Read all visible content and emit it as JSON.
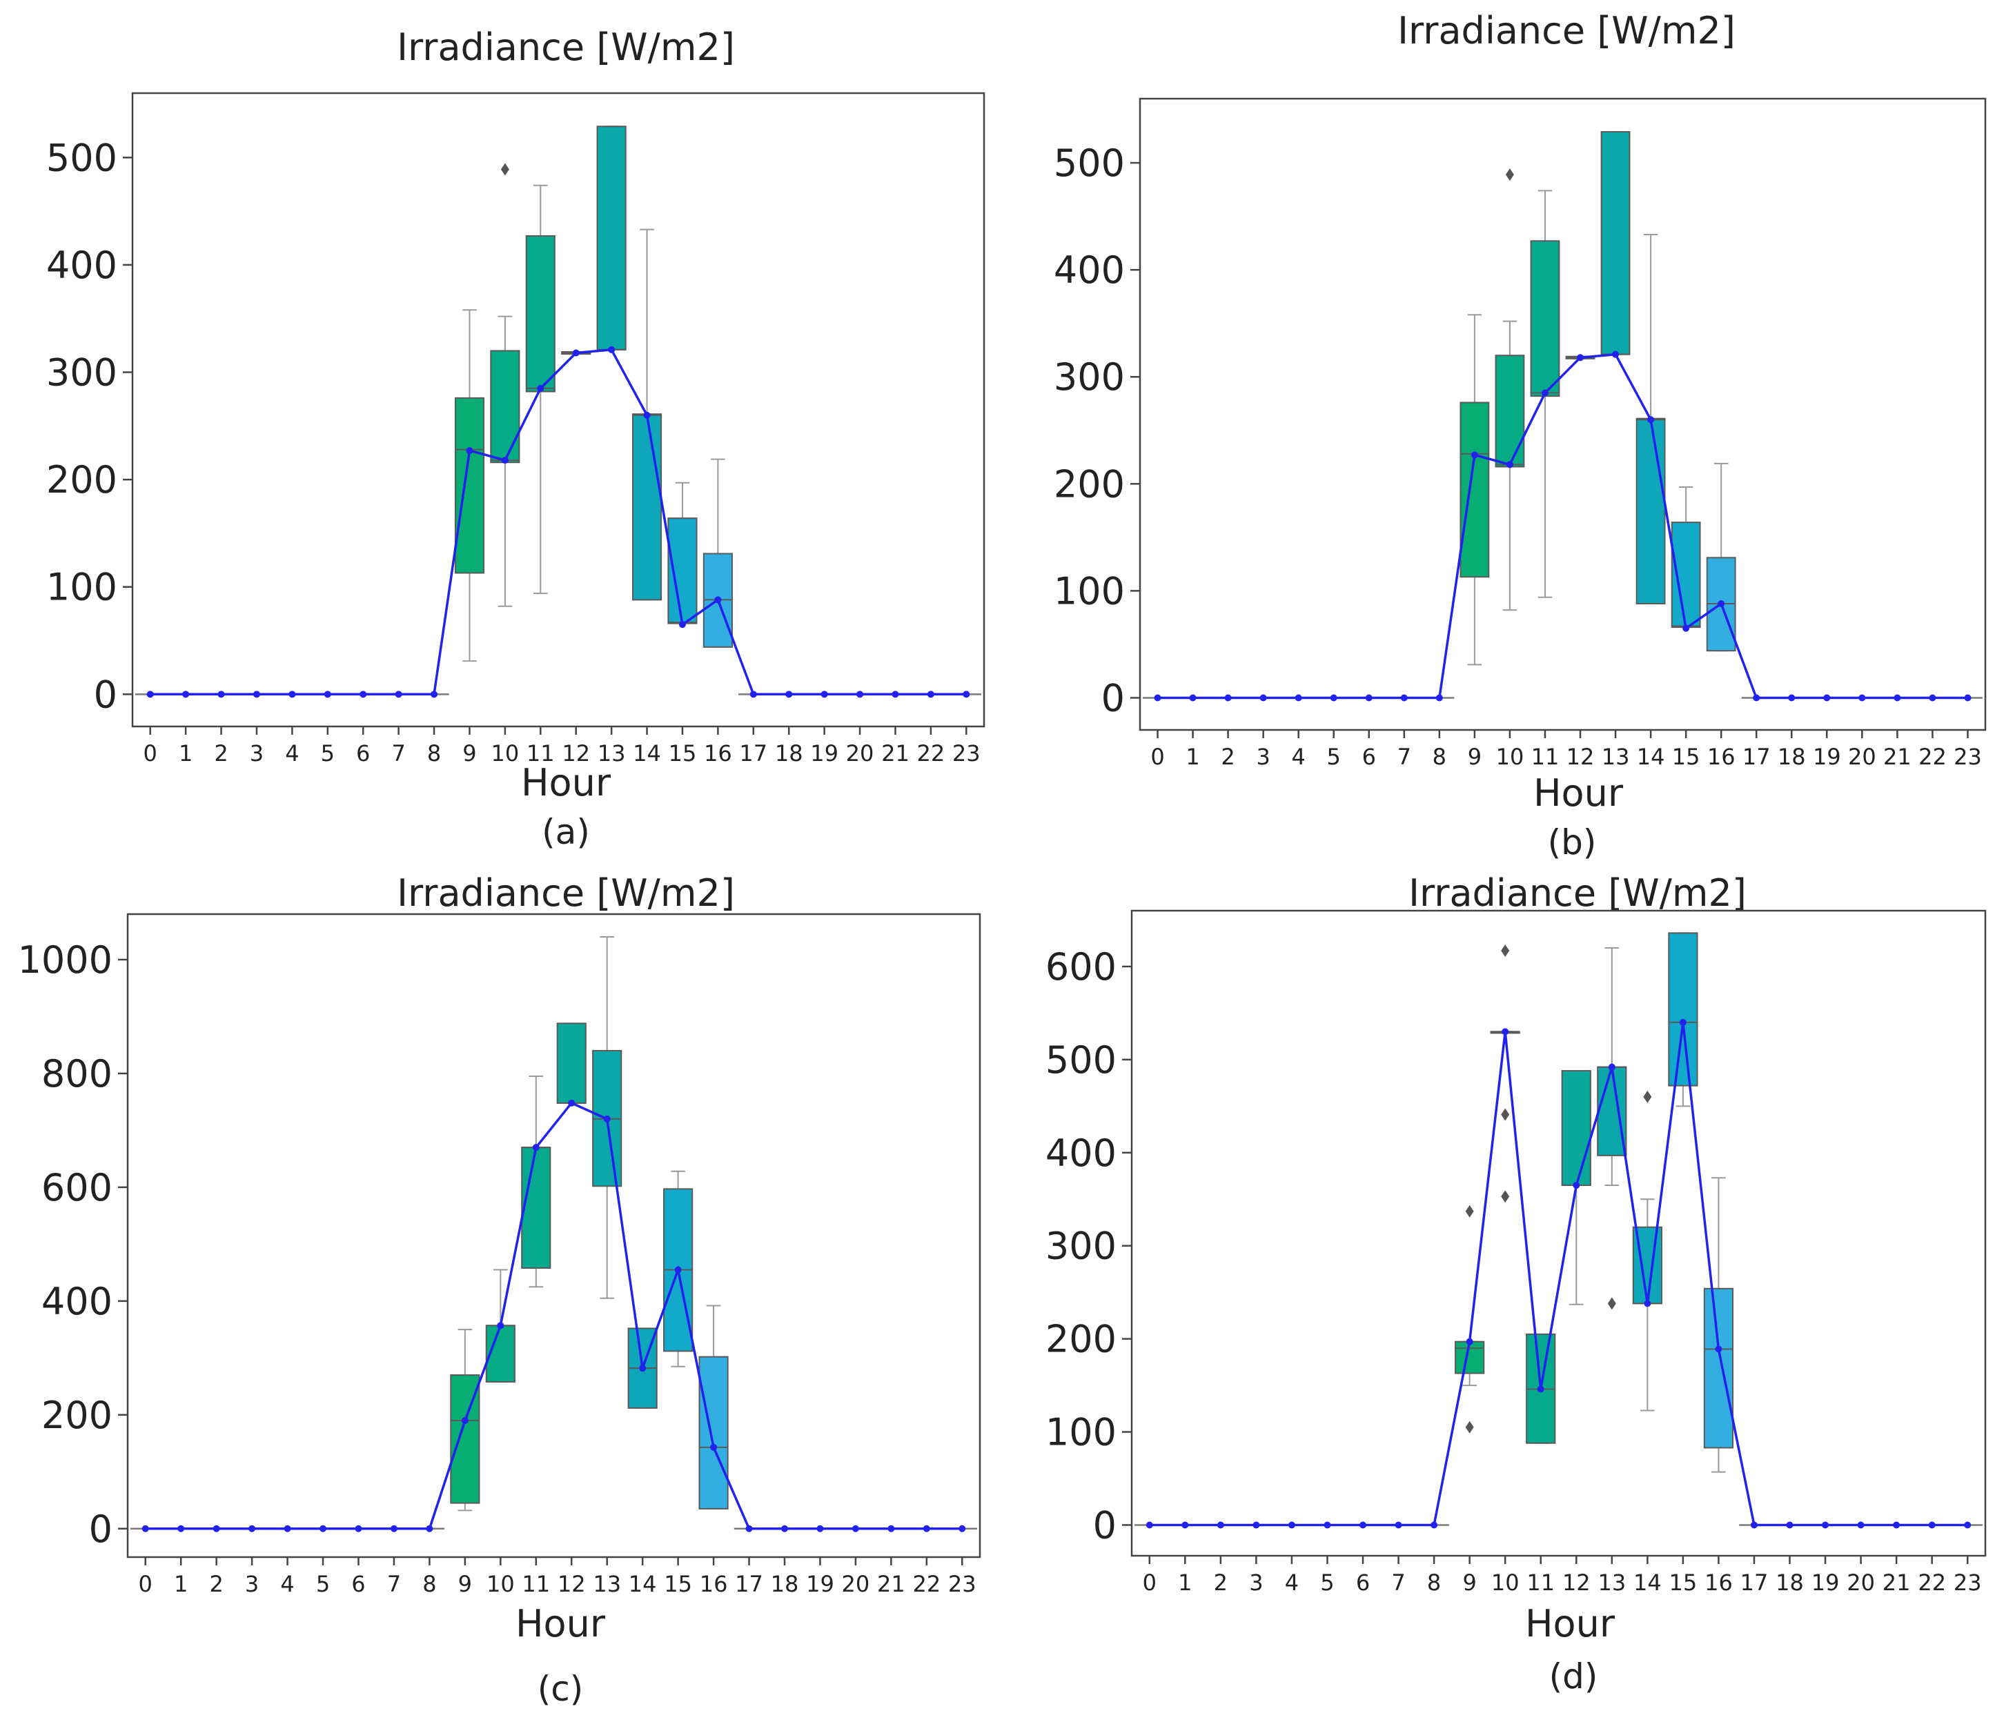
{
  "figure": {
    "mean_line_color": "#2222ee",
    "whisker_color": "#9a9a9a",
    "outlier_color": "#555555",
    "box_colors": {
      "9": "#07ad72",
      "10": "#05ab84",
      "11": "#06a98e",
      "12": "#0aa89a",
      "13": "#0ca7a8",
      "14": "#0fa6b9",
      "15": "#12a9ca",
      "16": "#33aee0"
    }
  },
  "chart_data": [
    {
      "id": "a",
      "type": "box",
      "caption": "(a)",
      "title": "Irradiance [W/m2]",
      "xlabel": "Hour",
      "ylabel": "",
      "categories": [
        "0",
        "1",
        "2",
        "3",
        "4",
        "5",
        "6",
        "7",
        "8",
        "9",
        "10",
        "11",
        "12",
        "13",
        "14",
        "15",
        "16",
        "17",
        "18",
        "19",
        "20",
        "21",
        "22",
        "23"
      ],
      "ylim": [
        -30,
        560
      ],
      "yticks": [
        0,
        100,
        200,
        300,
        400,
        500
      ],
      "ytick_labels": [
        "0",
        "100",
        "200",
        "300",
        "400",
        "500"
      ],
      "mean_line": [
        0,
        0,
        0,
        0,
        0,
        0,
        0,
        0,
        0,
        227,
        218,
        285,
        318,
        321,
        260,
        65,
        88,
        0,
        0,
        0,
        0,
        0,
        0,
        0
      ],
      "boxes": [
        {
          "hour": 9,
          "q1": 113,
          "median": 228,
          "q3": 276,
          "whislo": 31,
          "whishi": 358,
          "fliers": []
        },
        {
          "hour": 10,
          "q1": 216,
          "median": 218,
          "q3": 320,
          "whislo": 82,
          "whishi": 352,
          "fliers": [
            489
          ]
        },
        {
          "hour": 11,
          "q1": 282,
          "median": 285,
          "q3": 427,
          "whislo": 94,
          "whishi": 474,
          "fliers": []
        },
        {
          "hour": 12,
          "q1": 317,
          "median": 318,
          "q3": 319,
          "whislo": 317,
          "whishi": 319,
          "fliers": []
        },
        {
          "hour": 13,
          "q1": 321,
          "median": 321,
          "q3": 529,
          "whislo": 321,
          "whishi": 529,
          "fliers": []
        },
        {
          "hour": 14,
          "q1": 88,
          "median": 260,
          "q3": 261,
          "whislo": 88,
          "whishi": 433,
          "fliers": []
        },
        {
          "hour": 15,
          "q1": 66,
          "median": 67,
          "q3": 164,
          "whislo": 66,
          "whishi": 197,
          "fliers": []
        },
        {
          "hour": 16,
          "q1": 44,
          "median": 88,
          "q3": 131,
          "whislo": 44,
          "whishi": 219,
          "fliers": []
        }
      ]
    },
    {
      "id": "b",
      "type": "box",
      "caption": "(b)",
      "title": "Irradiance [W/m2]",
      "xlabel": "Hour",
      "ylabel": "",
      "categories": [
        "0",
        "1",
        "2",
        "3",
        "4",
        "5",
        "6",
        "7",
        "8",
        "9",
        "10",
        "11",
        "12",
        "13",
        "14",
        "15",
        "16",
        "17",
        "18",
        "19",
        "20",
        "21",
        "22",
        "23"
      ],
      "ylim": [
        -30,
        560
      ],
      "yticks": [
        0,
        100,
        200,
        300,
        400,
        500
      ],
      "ytick_labels": [
        "0",
        "100",
        "200",
        "300",
        "400",
        "500"
      ],
      "mean_line": [
        0,
        0,
        0,
        0,
        0,
        0,
        0,
        0,
        0,
        227,
        218,
        285,
        318,
        321,
        260,
        65,
        88,
        0,
        0,
        0,
        0,
        0,
        0,
        0
      ],
      "boxes": [
        {
          "hour": 9,
          "q1": 113,
          "median": 228,
          "q3": 276,
          "whislo": 31,
          "whishi": 358,
          "fliers": []
        },
        {
          "hour": 10,
          "q1": 216,
          "median": 218,
          "q3": 320,
          "whislo": 82,
          "whishi": 352,
          "fliers": [
            489
          ]
        },
        {
          "hour": 11,
          "q1": 282,
          "median": 285,
          "q3": 427,
          "whislo": 94,
          "whishi": 474,
          "fliers": []
        },
        {
          "hour": 12,
          "q1": 317,
          "median": 318,
          "q3": 319,
          "whislo": 317,
          "whishi": 319,
          "fliers": []
        },
        {
          "hour": 13,
          "q1": 321,
          "median": 321,
          "q3": 529,
          "whislo": 321,
          "whishi": 529,
          "fliers": []
        },
        {
          "hour": 14,
          "q1": 88,
          "median": 260,
          "q3": 261,
          "whislo": 88,
          "whishi": 433,
          "fliers": []
        },
        {
          "hour": 15,
          "q1": 66,
          "median": 67,
          "q3": 164,
          "whislo": 66,
          "whishi": 197,
          "fliers": []
        },
        {
          "hour": 16,
          "q1": 44,
          "median": 88,
          "q3": 131,
          "whislo": 44,
          "whishi": 219,
          "fliers": []
        }
      ]
    },
    {
      "id": "c",
      "type": "box",
      "caption": "(c)",
      "title": "Irradiance [W/m2]",
      "xlabel": "Hour",
      "ylabel": "",
      "categories": [
        "0",
        "1",
        "2",
        "3",
        "4",
        "5",
        "6",
        "7",
        "8",
        "9",
        "10",
        "11",
        "12",
        "13",
        "14",
        "15",
        "16",
        "17",
        "18",
        "19",
        "20",
        "21",
        "22",
        "23"
      ],
      "ylim": [
        -50,
        1080
      ],
      "yticks": [
        0,
        200,
        400,
        600,
        800,
        1000
      ],
      "ytick_labels": [
        "0",
        "200",
        "400",
        "600",
        "800",
        "1000"
      ],
      "mean_line": [
        0,
        0,
        0,
        0,
        0,
        0,
        0,
        0,
        0,
        190,
        357,
        670,
        748,
        720,
        282,
        455,
        143,
        0,
        0,
        0,
        0,
        0,
        0,
        0
      ],
      "boxes": [
        {
          "hour": 9,
          "q1": 45,
          "median": 190,
          "q3": 270,
          "whislo": 32,
          "whishi": 350,
          "fliers": []
        },
        {
          "hour": 10,
          "q1": 258,
          "median": 357,
          "q3": 357,
          "whislo": 258,
          "whishi": 455,
          "fliers": []
        },
        {
          "hour": 11,
          "q1": 458,
          "median": 670,
          "q3": 670,
          "whislo": 425,
          "whishi": 795,
          "fliers": []
        },
        {
          "hour": 12,
          "q1": 748,
          "median": 748,
          "q3": 888,
          "whislo": 748,
          "whishi": 888,
          "fliers": []
        },
        {
          "hour": 13,
          "q1": 602,
          "median": 720,
          "q3": 840,
          "whislo": 405,
          "whishi": 1040,
          "fliers": []
        },
        {
          "hour": 14,
          "q1": 212,
          "median": 282,
          "q3": 352,
          "whislo": 212,
          "whishi": 352,
          "fliers": []
        },
        {
          "hour": 15,
          "q1": 312,
          "median": 455,
          "q3": 597,
          "whislo": 285,
          "whishi": 628,
          "fliers": []
        },
        {
          "hour": 16,
          "q1": 35,
          "median": 143,
          "q3": 302,
          "whislo": 35,
          "whishi": 392,
          "fliers": []
        }
      ]
    },
    {
      "id": "d",
      "type": "box",
      "caption": "(d)",
      "title": "Irradiance [W/m2]",
      "xlabel": "Hour",
      "ylabel": "",
      "categories": [
        "0",
        "1",
        "2",
        "3",
        "4",
        "5",
        "6",
        "7",
        "8",
        "9",
        "10",
        "11",
        "12",
        "13",
        "14",
        "15",
        "16",
        "17",
        "18",
        "19",
        "20",
        "21",
        "22",
        "23"
      ],
      "ylim": [
        -33,
        660
      ],
      "yticks": [
        0,
        100,
        200,
        300,
        400,
        500,
        600
      ],
      "ytick_labels": [
        "0",
        "100",
        "200",
        "300",
        "400",
        "500",
        "600"
      ],
      "mean_line": [
        0,
        0,
        0,
        0,
        0,
        0,
        0,
        0,
        0,
        197,
        530,
        146,
        365,
        492,
        238,
        540,
        189,
        0,
        0,
        0,
        0,
        0,
        0,
        0
      ],
      "boxes": [
        {
          "hour": 9,
          "q1": 163,
          "median": 190,
          "q3": 197,
          "whislo": 150,
          "whishi": 197,
          "fliers": [
            337,
            105
          ]
        },
        {
          "hour": 10,
          "q1": 530,
          "median": 530,
          "q3": 530,
          "whislo": 530,
          "whishi": 530,
          "fliers": [
            617,
            441,
            353
          ]
        },
        {
          "hour": 11,
          "q1": 88,
          "median": 146,
          "q3": 205,
          "whislo": 88,
          "whishi": 205,
          "fliers": []
        },
        {
          "hour": 12,
          "q1": 365,
          "median": 365,
          "q3": 488,
          "whislo": 237,
          "whishi": 488,
          "fliers": []
        },
        {
          "hour": 13,
          "q1": 397,
          "median": 492,
          "q3": 492,
          "whislo": 365,
          "whishi": 620,
          "fliers": [
            238
          ]
        },
        {
          "hour": 14,
          "q1": 238,
          "median": 238,
          "q3": 320,
          "whislo": 123,
          "whishi": 350,
          "fliers": [
            460
          ]
        },
        {
          "hour": 15,
          "q1": 472,
          "median": 540,
          "q3": 636,
          "whislo": 450,
          "whishi": 636,
          "fliers": []
        },
        {
          "hour": 16,
          "q1": 83,
          "median": 189,
          "q3": 254,
          "whislo": 57,
          "whishi": 373,
          "fliers": []
        }
      ]
    }
  ]
}
